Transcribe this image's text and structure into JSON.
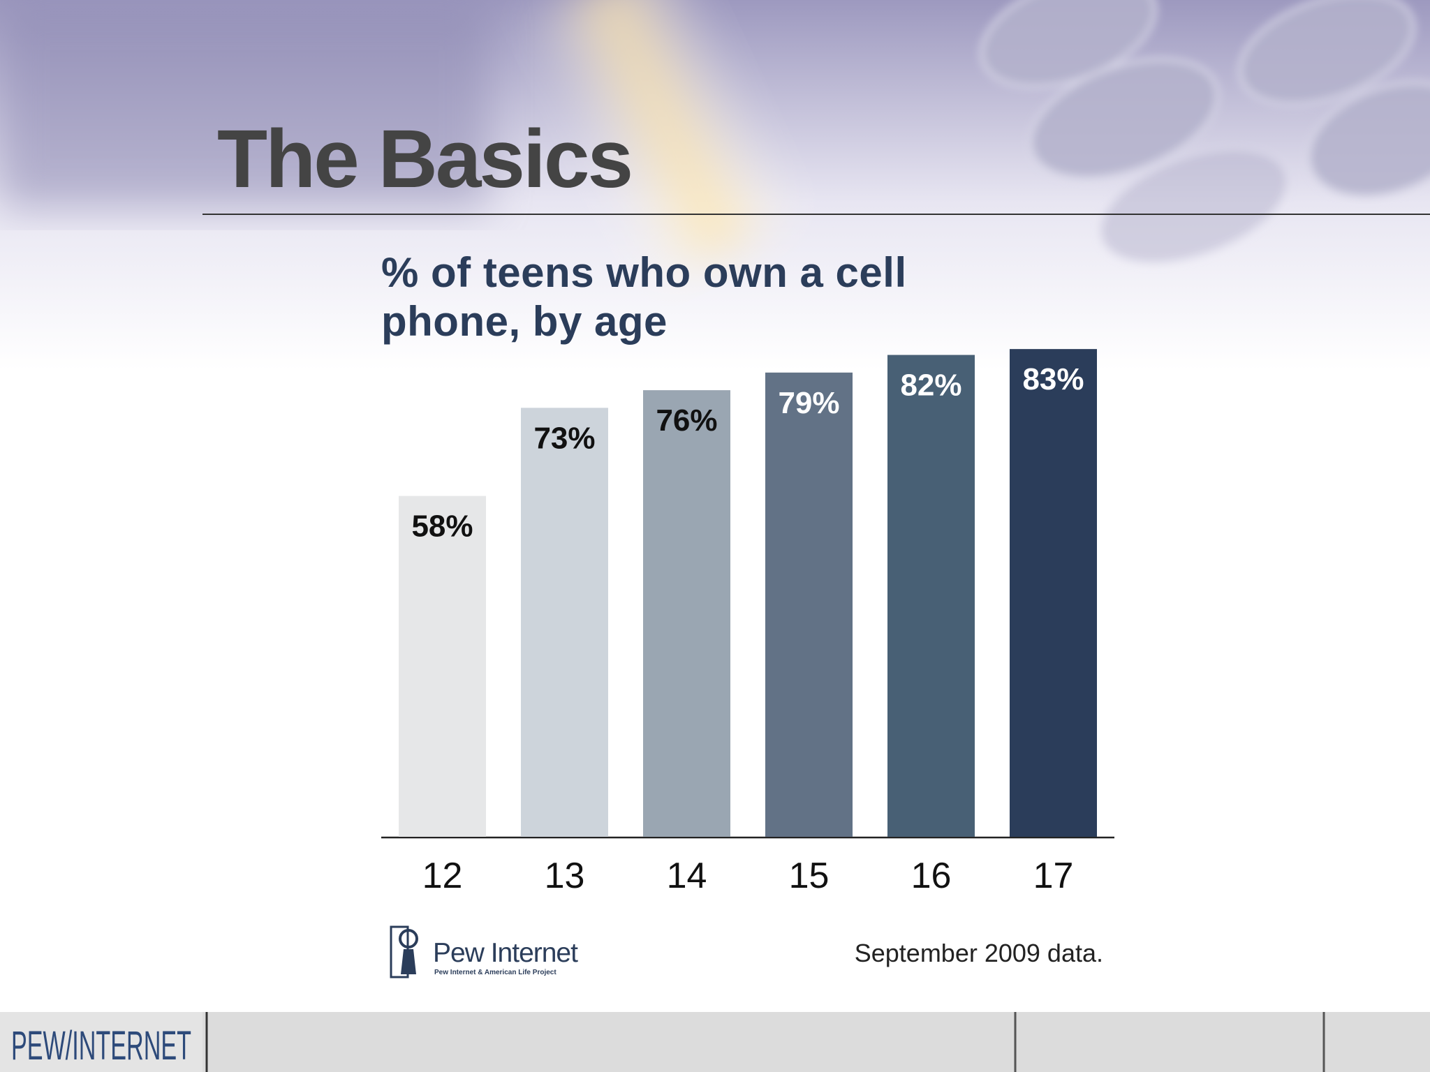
{
  "header": {
    "title": "The Basics"
  },
  "chart_data": {
    "type": "bar",
    "title": "% of teens who own a cell phone, by age",
    "categories": [
      "12",
      "13",
      "14",
      "15",
      "16",
      "17"
    ],
    "values": [
      58,
      73,
      76,
      79,
      82,
      83
    ],
    "value_labels": [
      "58%",
      "73%",
      "76%",
      "79%",
      "82%",
      "83%"
    ],
    "colors": [
      "#e6e7e8",
      "#cdd4db",
      "#9aa6b2",
      "#627286",
      "#486075",
      "#2b3d5a"
    ],
    "ylim": [
      0,
      100
    ],
    "note": "September 2009 data."
  },
  "logo": {
    "name": "Pew Internet",
    "subtitle": "Pew Internet & American Life Project"
  },
  "footer": {
    "brand": "PEW/INTERNET"
  }
}
